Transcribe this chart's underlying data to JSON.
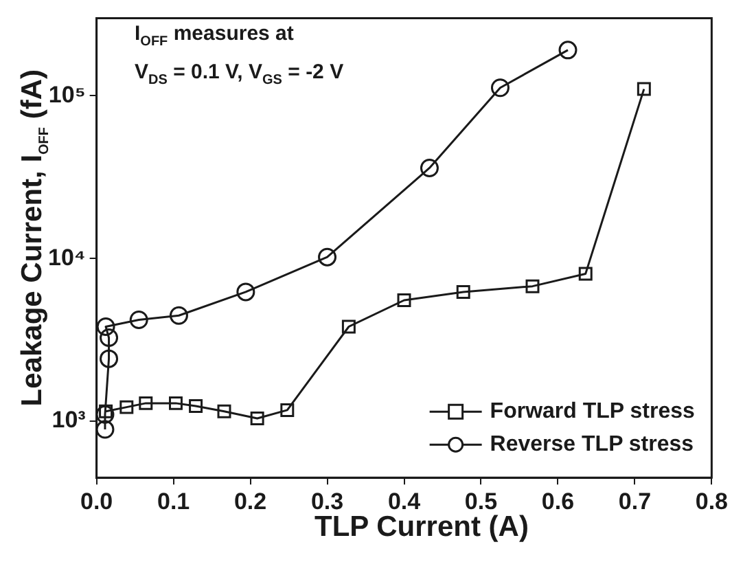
{
  "chart_data": {
    "type": "line",
    "xlabel": "TLP Current (A)",
    "ylabel": "Leakage Current, I$_{OFF}$ (fA)",
    "annotations": [
      "I$_{OFF}$ measures at",
      "V$_{DS}$ = 0.1 V, V$_{GS}$ = -2 V"
    ],
    "series": [
      {
        "name": "Forward TLP stress",
        "color": "#1a1a1a",
        "marker": "square",
        "x": [
          0.012,
          0.039,
          0.064,
          0.103,
          0.129,
          0.166,
          0.209,
          0.248,
          0.328,
          0.4,
          0.477,
          0.567,
          0.636,
          0.712
        ],
        "values": [
          1150,
          1220,
          1290,
          1290,
          1240,
          1150,
          1040,
          1170,
          3810,
          5540,
          6230,
          6750,
          8060,
          110000
        ]
      },
      {
        "name": "Reverse TLP stress",
        "color": "#1a1a1a",
        "marker": "circle",
        "x": [
          0.011,
          0.011,
          0.016,
          0.016,
          0.012,
          0.055,
          0.107,
          0.194,
          0.3,
          0.433,
          0.525,
          0.613
        ],
        "values": [
          890,
          1100,
          2420,
          3260,
          3810,
          4200,
          4460,
          6230,
          10200,
          36000,
          112000,
          191000
        ]
      }
    ],
    "log": "y",
    "xlim": [
      0,
      0.8
    ],
    "xticks": [
      {
        "value": 0,
        "label": "0.0"
      },
      {
        "value": 0.1,
        "label": "0.1"
      },
      {
        "value": 0.2,
        "label": "0.2"
      },
      {
        "value": 0.3,
        "label": "0.3"
      },
      {
        "value": 0.4,
        "label": "0.4"
      },
      {
        "value": 0.5,
        "label": "0.5"
      },
      {
        "value": 0.6,
        "label": "0.6"
      },
      {
        "value": 0.7,
        "label": "0.7"
      },
      {
        "value": 0.8,
        "label": "0.8"
      }
    ],
    "ylim": [
      450,
      300000
    ],
    "yticks": [
      {
        "value": 1000,
        "label": "10³"
      },
      {
        "value": 10000,
        "label": "10⁴"
      },
      {
        "value": 100000,
        "label": "10⁵"
      }
    ],
    "grid": false,
    "legend": "bottom right",
    "line_style": "solid"
  }
}
